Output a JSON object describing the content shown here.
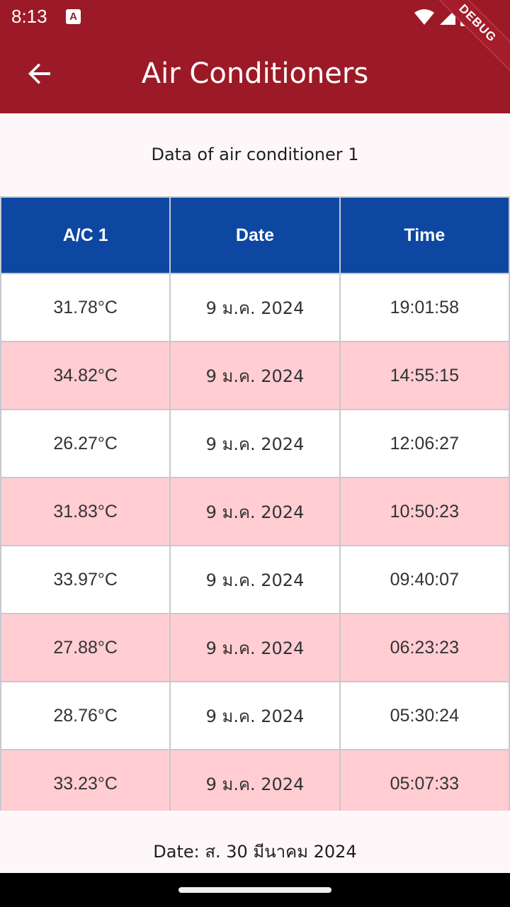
{
  "status_bar": {
    "time": "8:13",
    "notif_glyph": "A"
  },
  "app_bar": {
    "title": "Air Conditioners",
    "back_icon": "arrow-left-icon"
  },
  "debug_banner": "DEBUG",
  "subtitle": "Data of air conditioner 1",
  "table": {
    "headers": [
      "A/C 1",
      "Date",
      "Time"
    ],
    "rows": [
      {
        "temp": "31.78°C",
        "date": "9 ม.ค. 2024",
        "time": "19:01:58"
      },
      {
        "temp": "34.82°C",
        "date": "9 ม.ค. 2024",
        "time": "14:55:15"
      },
      {
        "temp": "26.27°C",
        "date": "9 ม.ค. 2024",
        "time": "12:06:27"
      },
      {
        "temp": "31.83°C",
        "date": "9 ม.ค. 2024",
        "time": "10:50:23"
      },
      {
        "temp": "33.97°C",
        "date": "9 ม.ค. 2024",
        "time": "09:40:07"
      },
      {
        "temp": "27.88°C",
        "date": "9 ม.ค. 2024",
        "time": "06:23:23"
      },
      {
        "temp": "28.76°C",
        "date": "9 ม.ค. 2024",
        "time": "05:30:24"
      },
      {
        "temp": "33.23°C",
        "date": "9 ม.ค. 2024",
        "time": "05:07:33"
      }
    ]
  },
  "footer": {
    "date_label": "Date: ส. 30 มีนาคม 2024"
  },
  "colors": {
    "app_bar": "#9c1a27",
    "table_header": "#0d47a1",
    "row_alt": "#ffcdd2"
  }
}
